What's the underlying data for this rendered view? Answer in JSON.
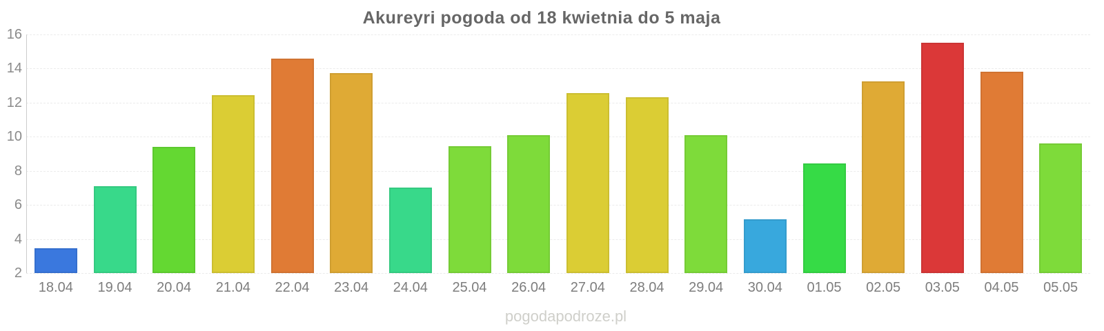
{
  "page": {
    "watermark": "pogodapodroze.pl"
  },
  "chart_data": {
    "type": "bar",
    "title": "Akureyri pogoda od 18 kwietnia do 5 maja",
    "categories": [
      "18.04",
      "19.04",
      "20.04",
      "21.04",
      "22.04",
      "23.04",
      "24.04",
      "25.04",
      "26.04",
      "27.04",
      "28.04",
      "29.04",
      "30.04",
      "01.05",
      "02.05",
      "03.05",
      "04.05",
      "05.05"
    ],
    "values": [
      3.45,
      7.1,
      9.4,
      12.45,
      14.6,
      13.75,
      7.0,
      9.45,
      10.1,
      12.55,
      12.3,
      10.1,
      5.15,
      8.45,
      13.25,
      15.5,
      13.8,
      9.6
    ],
    "bar_colors": [
      "#3a78de",
      "#38d98a",
      "#64d832",
      "#dbcd34",
      "#e07b35",
      "#dfaa35",
      "#38d98a",
      "#7edb3a",
      "#7edb3a",
      "#dbcd34",
      "#dbcd34",
      "#7edb3a",
      "#38a8dd",
      "#36db46",
      "#dfaa35",
      "#db3838",
      "#e07b35",
      "#7edb3a"
    ],
    "xlabel": "",
    "ylabel": "",
    "ylim": [
      2,
      16
    ],
    "yticks": [
      2,
      4,
      6,
      8,
      10,
      12,
      14,
      16
    ],
    "grid": true,
    "legend": false,
    "colors": {
      "title": "#666666",
      "tick_labels": "#8a8a8a",
      "grid_line": "#ebebeb",
      "axis_line": "#cccccc",
      "watermark": "#cfcfca",
      "background": "#ffffff"
    }
  }
}
